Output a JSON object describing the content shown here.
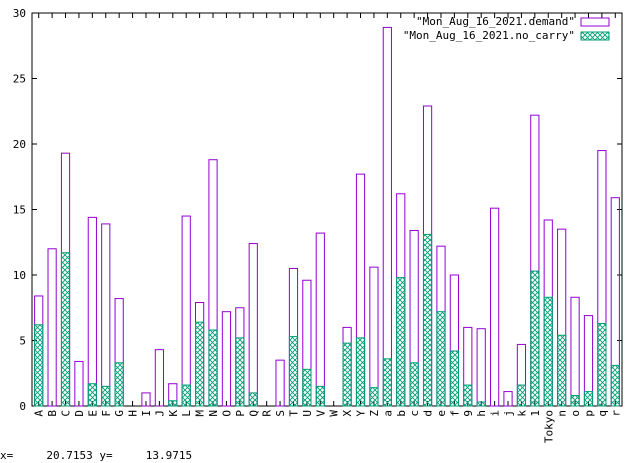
{
  "chart_data": {
    "type": "bar",
    "title": "",
    "xlabel": "",
    "ylabel": "",
    "ylim": [
      0,
      30
    ],
    "yticks": [
      0,
      5,
      10,
      15,
      20,
      25,
      30
    ],
    "grid": false,
    "legend_position": "top-right",
    "categories": [
      "A",
      "B",
      "C",
      "D",
      "E",
      "F",
      "G",
      "H",
      "I",
      "J",
      "K",
      "L",
      "M",
      "N",
      "O",
      "P",
      "Q",
      "R",
      "S",
      "T",
      "U",
      "V",
      "W",
      "X",
      "Y",
      "Z",
      "a",
      "b",
      "c",
      "d",
      "e",
      "f",
      "9",
      "h",
      "i",
      "j",
      "k",
      "1",
      "Tokyo",
      "n",
      "o",
      "p",
      "q",
      "r"
    ],
    "series": [
      {
        "name": "\"Mon_Aug_16_2021.demand\"",
        "color": "#9400d3",
        "pattern": "empty",
        "values": [
          8.4,
          12.0,
          19.3,
          3.4,
          14.4,
          13.9,
          8.2,
          0,
          1.0,
          4.3,
          1.7,
          14.5,
          7.9,
          18.8,
          7.2,
          7.5,
          12.4,
          0,
          3.5,
          10.5,
          9.6,
          13.2,
          0,
          6.0,
          17.7,
          10.6,
          28.9,
          16.2,
          13.4,
          22.9,
          12.2,
          10.0,
          6.0,
          5.9,
          15.1,
          1.1,
          4.7,
          22.2,
          14.2,
          13.5,
          8.3,
          6.9,
          19.5,
          15.9
        ]
      },
      {
        "name": "\"Mon_Aug_16_2021.no_carry\"",
        "color": "#009e73",
        "pattern": "crosshatch",
        "values": [
          6.2,
          0,
          11.7,
          0,
          1.7,
          1.5,
          3.3,
          0,
          0,
          0,
          0.4,
          1.6,
          6.4,
          5.8,
          0,
          5.2,
          1.0,
          0,
          0,
          5.3,
          2.8,
          1.5,
          0,
          4.8,
          5.2,
          1.4,
          3.6,
          9.8,
          3.3,
          13.1,
          7.2,
          4.2,
          1.6,
          0.3,
          0,
          0,
          1.6,
          10.3,
          8.3,
          5.4,
          0.8,
          1.1,
          6.3,
          3.1
        ]
      }
    ]
  },
  "status": {
    "x_label": "x=",
    "x_value": "20.7153",
    "y_label": "y=",
    "y_value": "13.9715"
  }
}
